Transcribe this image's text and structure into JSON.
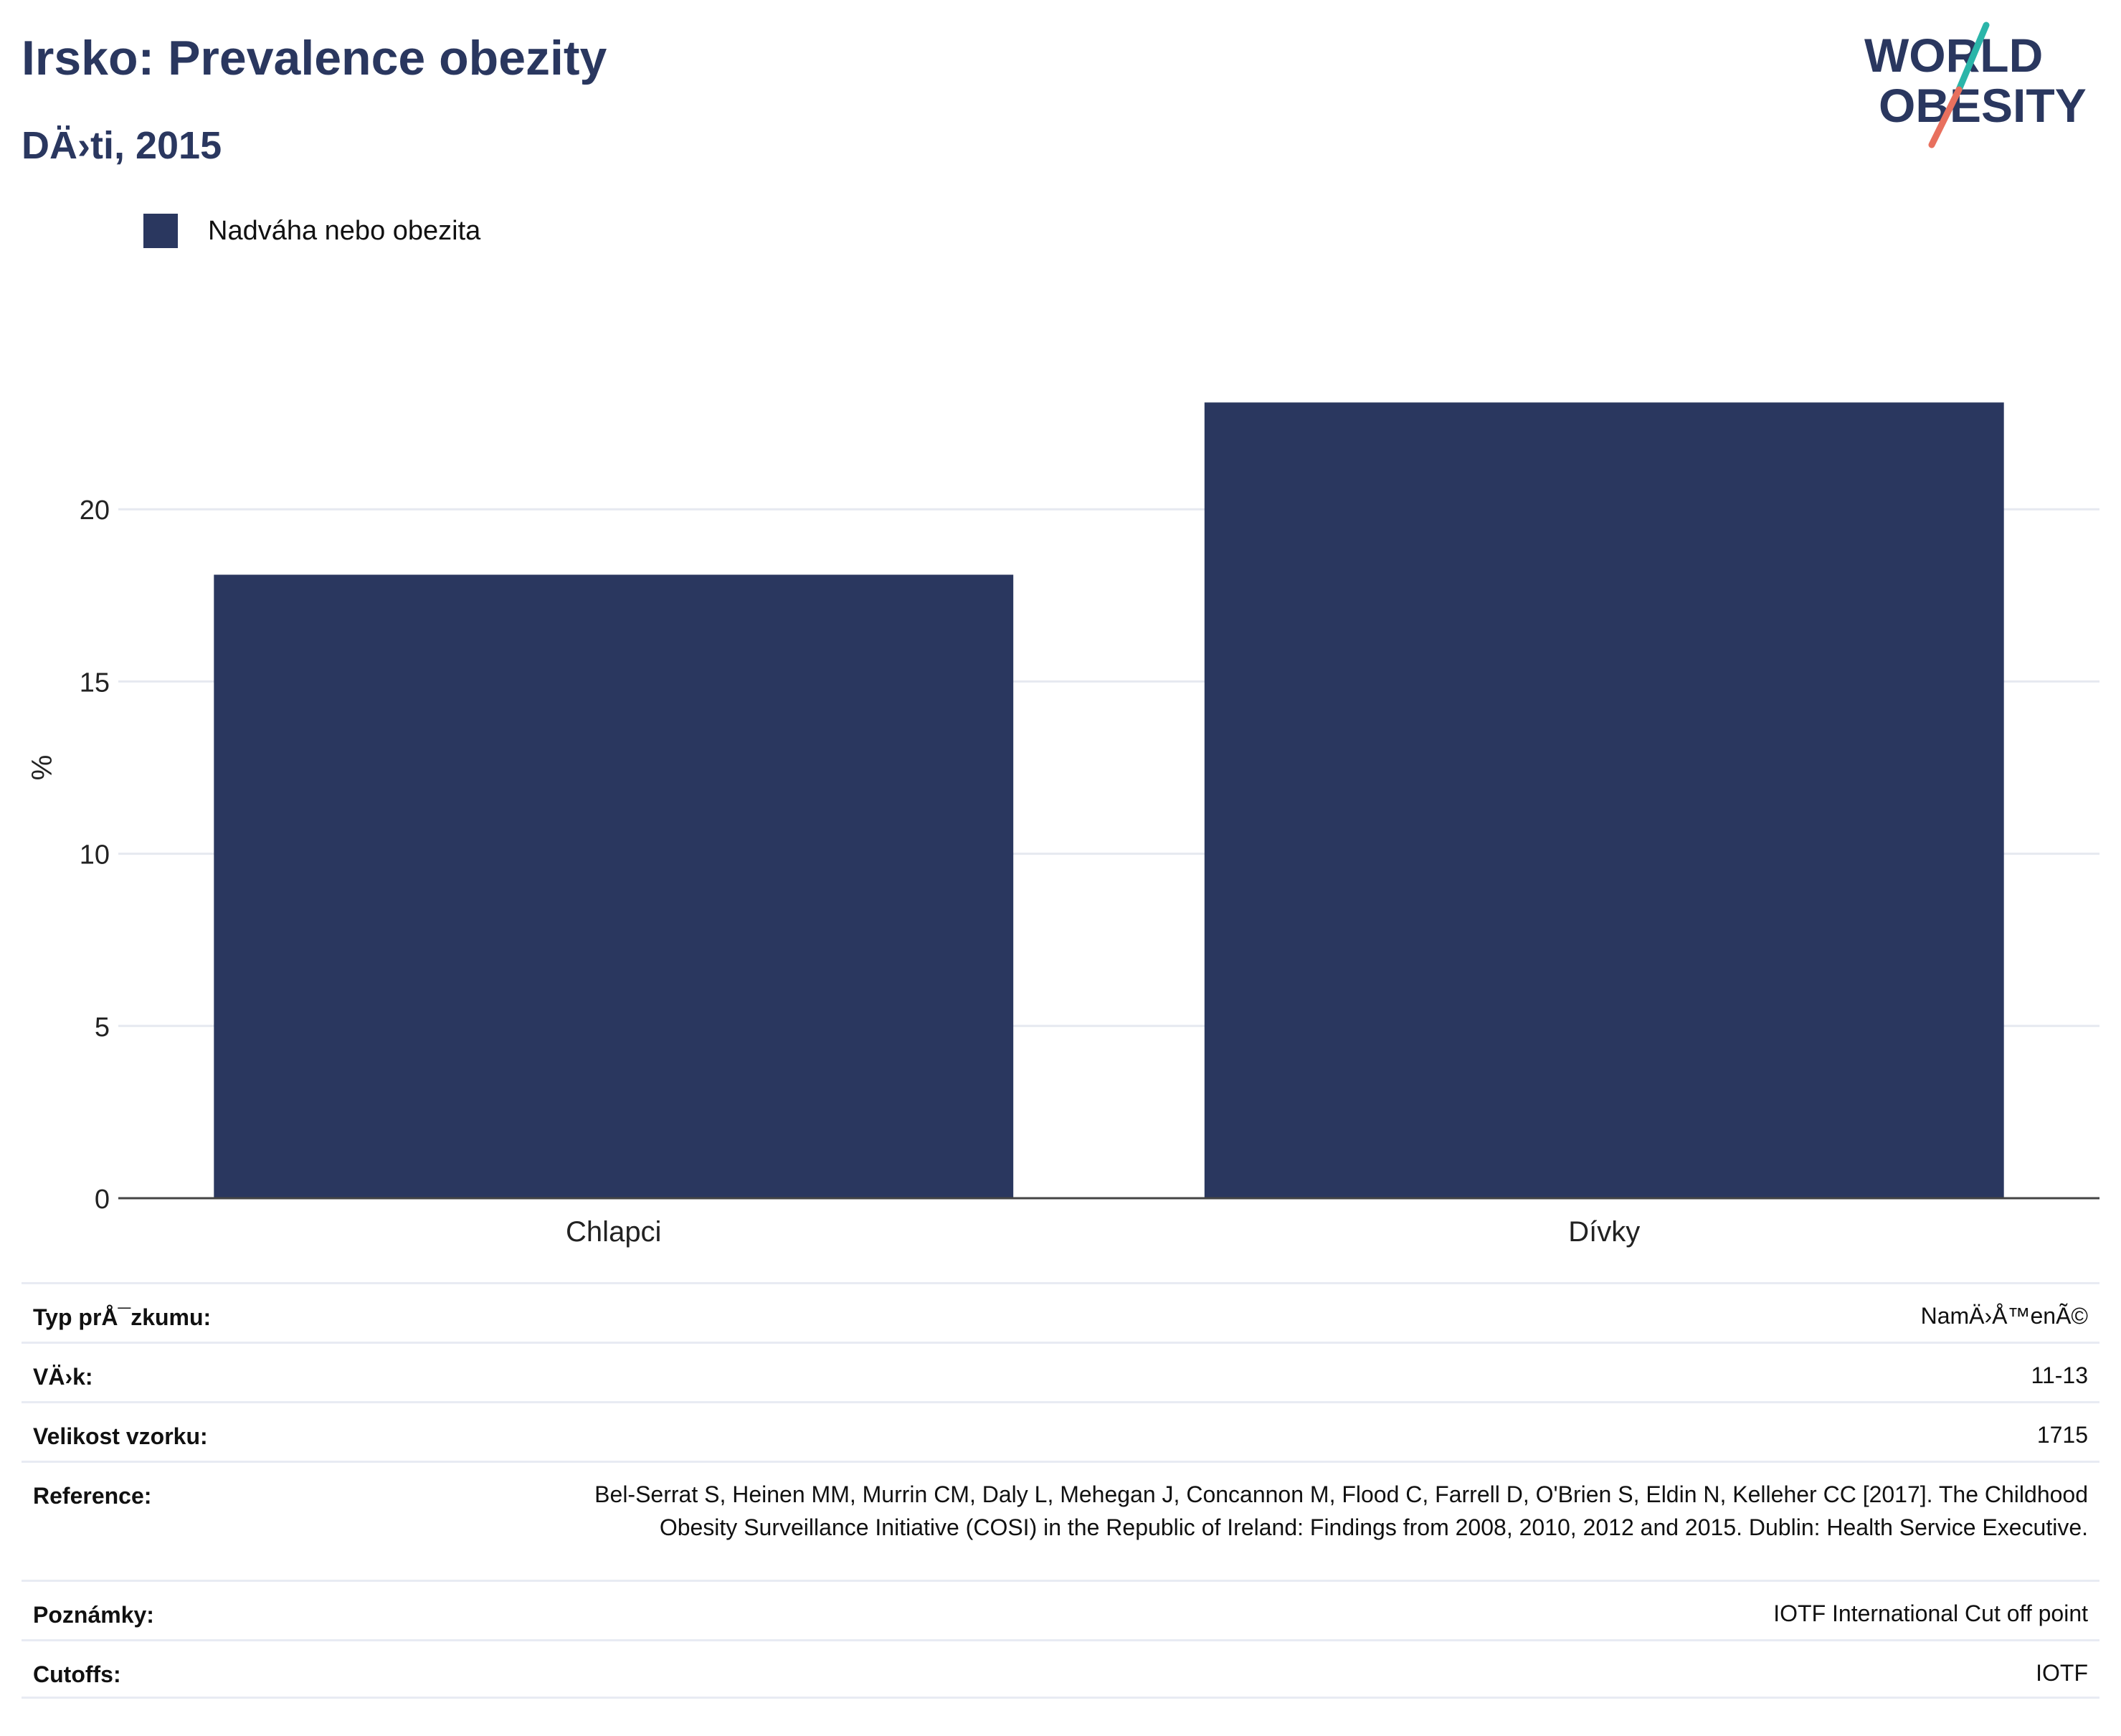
{
  "header": {
    "title": "Irsko: Prevalence obezity",
    "subtitle": "DÄ›ti, 2015"
  },
  "logo": {
    "line1": "WORLD",
    "line2": "OBESITY",
    "colors": {
      "text": "#2a375f",
      "slash_top": "#2bb5a9",
      "slash_bottom": "#e8705e"
    }
  },
  "legend": {
    "items": [
      {
        "label": "Nadváha nebo obezita",
        "color": "#2a375f"
      }
    ]
  },
  "chart_data": {
    "type": "bar",
    "categories": [
      "Chlapci",
      "Dívky"
    ],
    "series": [
      {
        "name": "Nadváha nebo obezita",
        "values": [
          18.1,
          23.1
        ],
        "color": "#2a375f"
      }
    ],
    "ylabel": "%",
    "xlabel": "",
    "ylim": [
      0,
      25
    ],
    "yticks": [
      0,
      5,
      10,
      15,
      20
    ],
    "grid": true,
    "legend_position": "top-left"
  },
  "details": {
    "rows": [
      {
        "label": "Typ prÅ¯zkumu:",
        "value": "NamÄ›Å™enÃ©"
      },
      {
        "label": "VÄ›k:",
        "value": "11-13"
      },
      {
        "label": "Velikost vzorku:",
        "value": "1715"
      },
      {
        "label": "Reference:",
        "value": "Bel-Serrat S, Heinen MM, Murrin CM, Daly L, Mehegan J, Concannon M, Flood C, Farrell D, O'Brien S, Eldin N, Kelleher CC [2017]. The Childhood Obesity Surveillance Initiative (COSI) in the Republic of Ireland: Findings from 2008, 2010, 2012 and 2015. Dublin: Health Service Executive."
      },
      {
        "label": "Poznámky:",
        "value": "IOTF International Cut off point"
      },
      {
        "label": "Cutoffs:",
        "value": "IOTF"
      }
    ]
  }
}
